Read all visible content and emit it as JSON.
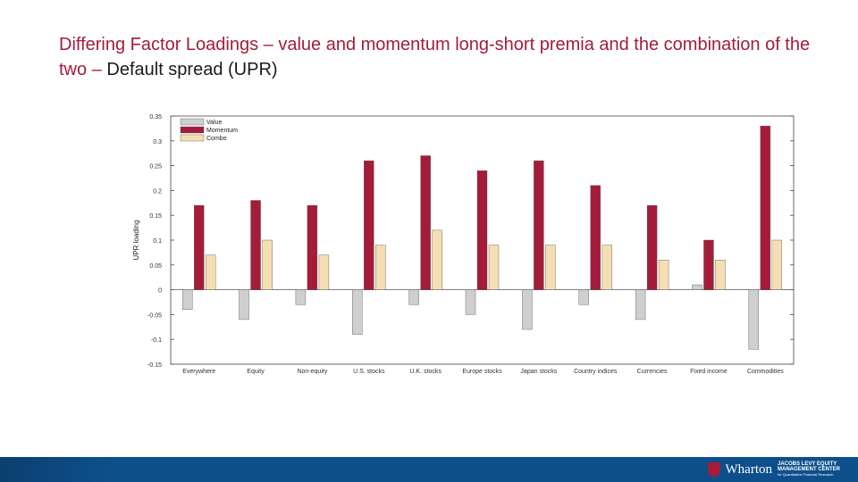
{
  "slide": {
    "title_part1": "Differing Factor Loadings – value and momentum long-short premia and the combination of the two –",
    "title_part2": "Default spread (UPR)"
  },
  "footer": {
    "logo_name": "Wharton",
    "logo_subtitle_1": "JACOBS LEVY EQUITY",
    "logo_subtitle_2": "MANAGEMENT CENTER",
    "logo_subtitle_3": "for Quantitative Financial Research",
    "colors": {
      "bar": "#0d4f8b",
      "shield": "#a41c3a"
    }
  },
  "chart_data": {
    "type": "bar",
    "title": "",
    "xlabel": "",
    "ylabel": "UPR loading",
    "ylim": [
      -0.15,
      0.35
    ],
    "yticks": [
      -0.15,
      -0.1,
      -0.05,
      0,
      0.05,
      0.1,
      0.15,
      0.2,
      0.25,
      0.3,
      0.35
    ],
    "ytick_labels": [
      "-0.15",
      "-0.1",
      "-0.05",
      "0",
      "0.05",
      "0.1",
      "0.15",
      "0.2",
      "0.25",
      "0.3",
      "0.35"
    ],
    "grid": false,
    "legend_position": "top-left",
    "categories": [
      "Everywhere",
      "Equity",
      "Non-equity",
      "U.S. stocks",
      "U.K. stocks",
      "Europe stocks",
      "Japan stocks",
      "Country indices",
      "Currencies",
      "Fixed income",
      "Commodities"
    ],
    "series": [
      {
        "name": "Value",
        "color": "#cfcfcf",
        "values": [
          -0.04,
          -0.06,
          -0.03,
          -0.09,
          -0.03,
          -0.05,
          -0.08,
          -0.03,
          -0.06,
          0.01,
          -0.12
        ]
      },
      {
        "name": "Momentum",
        "color": "#a41c3a",
        "values": [
          0.17,
          0.18,
          0.17,
          0.26,
          0.27,
          0.24,
          0.26,
          0.21,
          0.17,
          0.1,
          0.33
        ]
      },
      {
        "name": "Combo",
        "color": "#f5deb3",
        "values": [
          0.07,
          0.1,
          0.07,
          0.09,
          0.12,
          0.09,
          0.09,
          0.09,
          0.06,
          0.06,
          0.1
        ]
      }
    ]
  }
}
